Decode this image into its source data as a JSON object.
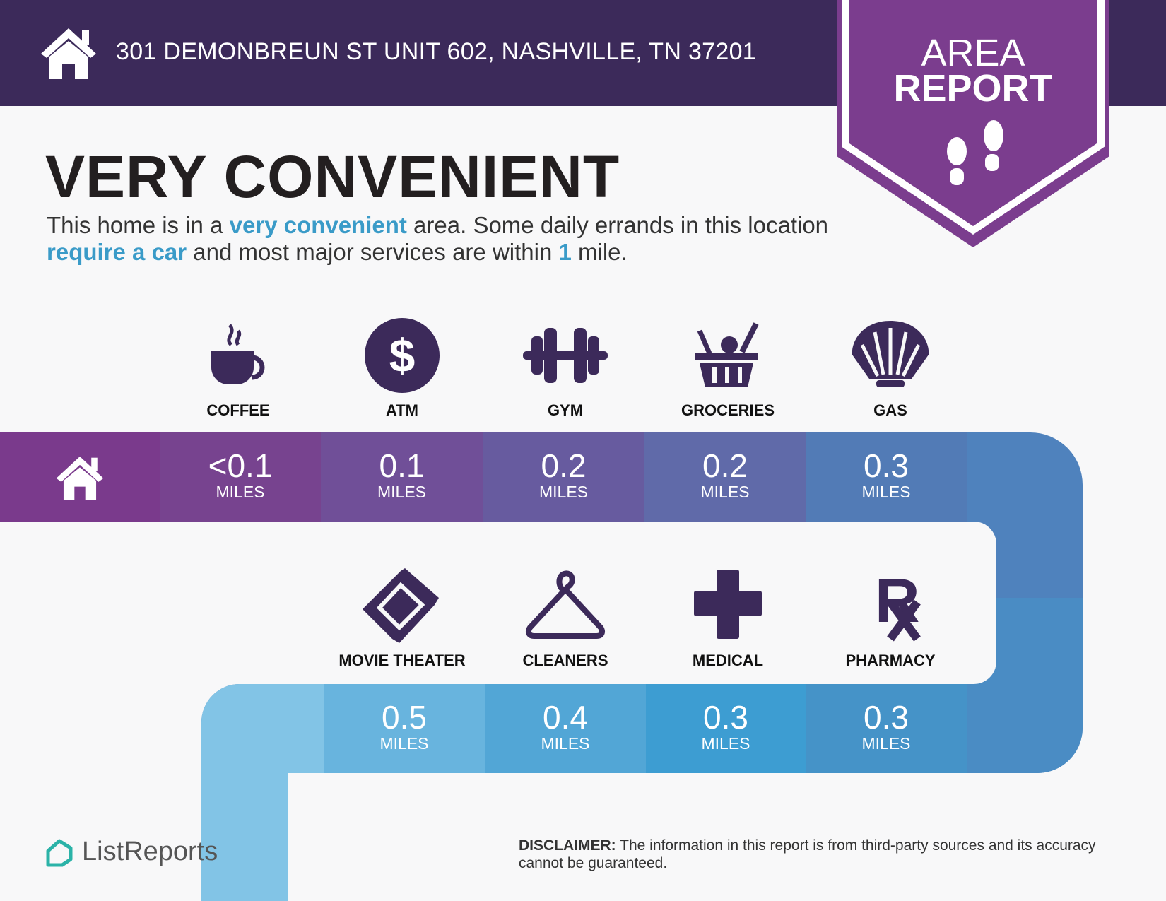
{
  "header": {
    "address": "301 DEMONBREUN ST UNIT 602, NASHVILLE, TN 37201",
    "icon": "home-icon"
  },
  "banner": {
    "line1": "AREA",
    "line2": "REPORT",
    "icon": "footprints-icon"
  },
  "title": "VERY CONVENIENT",
  "description": {
    "p1": "This home is in a ",
    "h1": "very convenient",
    "p2": " area. Some daily errands in this location ",
    "h2": "require a car",
    "p3": " and most major services are within ",
    "h3": "1",
    "p4": " mile."
  },
  "unit": "MILES",
  "row1": [
    {
      "label": "COFFEE",
      "distance": "<0.1",
      "icon": "coffee-icon"
    },
    {
      "label": "ATM",
      "distance": "0.1",
      "icon": "dollar-icon"
    },
    {
      "label": "GYM",
      "distance": "0.2",
      "icon": "dumbbell-icon"
    },
    {
      "label": "GROCERIES",
      "distance": "0.2",
      "icon": "basket-icon"
    },
    {
      "label": "GAS",
      "distance": "0.3",
      "icon": "shell-icon"
    }
  ],
  "row2": [
    {
      "label": "MOVIE THEATER",
      "distance": "0.5",
      "icon": "ticket-icon"
    },
    {
      "label": "CLEANERS",
      "distance": "0.4",
      "icon": "hanger-icon"
    },
    {
      "label": "MEDICAL",
      "distance": "0.3",
      "icon": "medical-cross-icon"
    },
    {
      "label": "PHARMACY",
      "distance": "0.3",
      "icon": "rx-icon"
    }
  ],
  "footer": {
    "logo": "ListReports",
    "disclaimer_label": "DISCLAIMER:",
    "disclaimer_text": " The information in this report is from third-party sources and its accuracy cannot be guaranteed."
  },
  "colors": {
    "header": "#3c2a5a",
    "banner": "#7b3d8e",
    "accent": "#3a9bc8",
    "icon": "#3c2a5a"
  }
}
